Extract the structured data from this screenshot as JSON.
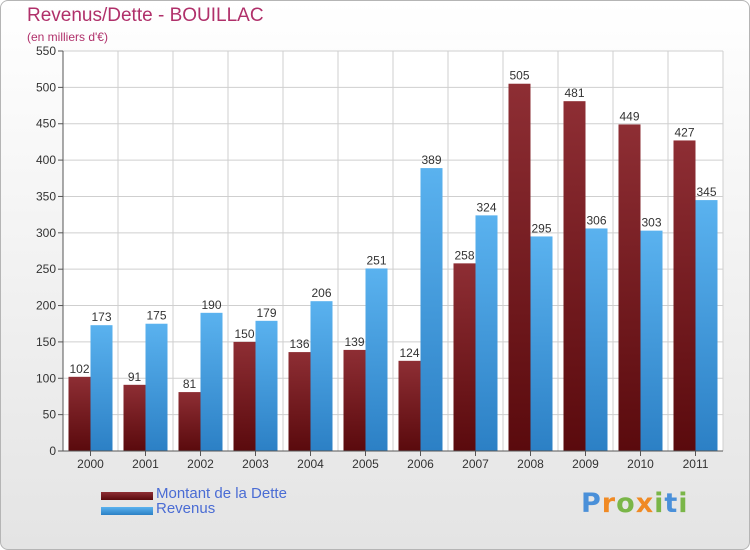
{
  "title": "Revenus/Dette - BOUILLAC",
  "subtitle": "(en milliers d'€)",
  "logo_text": "Proxiti",
  "colors": {
    "title": "#b0306a",
    "debt": "#7a1f23",
    "revenue": "#4da6e8",
    "legend_text": "#4a6cd4"
  },
  "chart_data": {
    "type": "bar",
    "categories": [
      "2000",
      "2001",
      "2002",
      "2003",
      "2004",
      "2005",
      "2006",
      "2007",
      "2008",
      "2009",
      "2010",
      "2011"
    ],
    "series": [
      {
        "name": "Montant de la Dette",
        "values": [
          102,
          91,
          81,
          150,
          136,
          139,
          124,
          258,
          505,
          481,
          449,
          427
        ]
      },
      {
        "name": "Revenus",
        "values": [
          173,
          175,
          190,
          179,
          206,
          251,
          389,
          324,
          295,
          306,
          303,
          345
        ]
      }
    ],
    "yticks": [
      0,
      50,
      100,
      150,
      200,
      250,
      300,
      350,
      400,
      450,
      500,
      550
    ],
    "ylim": [
      0,
      550
    ],
    "grid": true,
    "legend_position": "bottom-left"
  }
}
